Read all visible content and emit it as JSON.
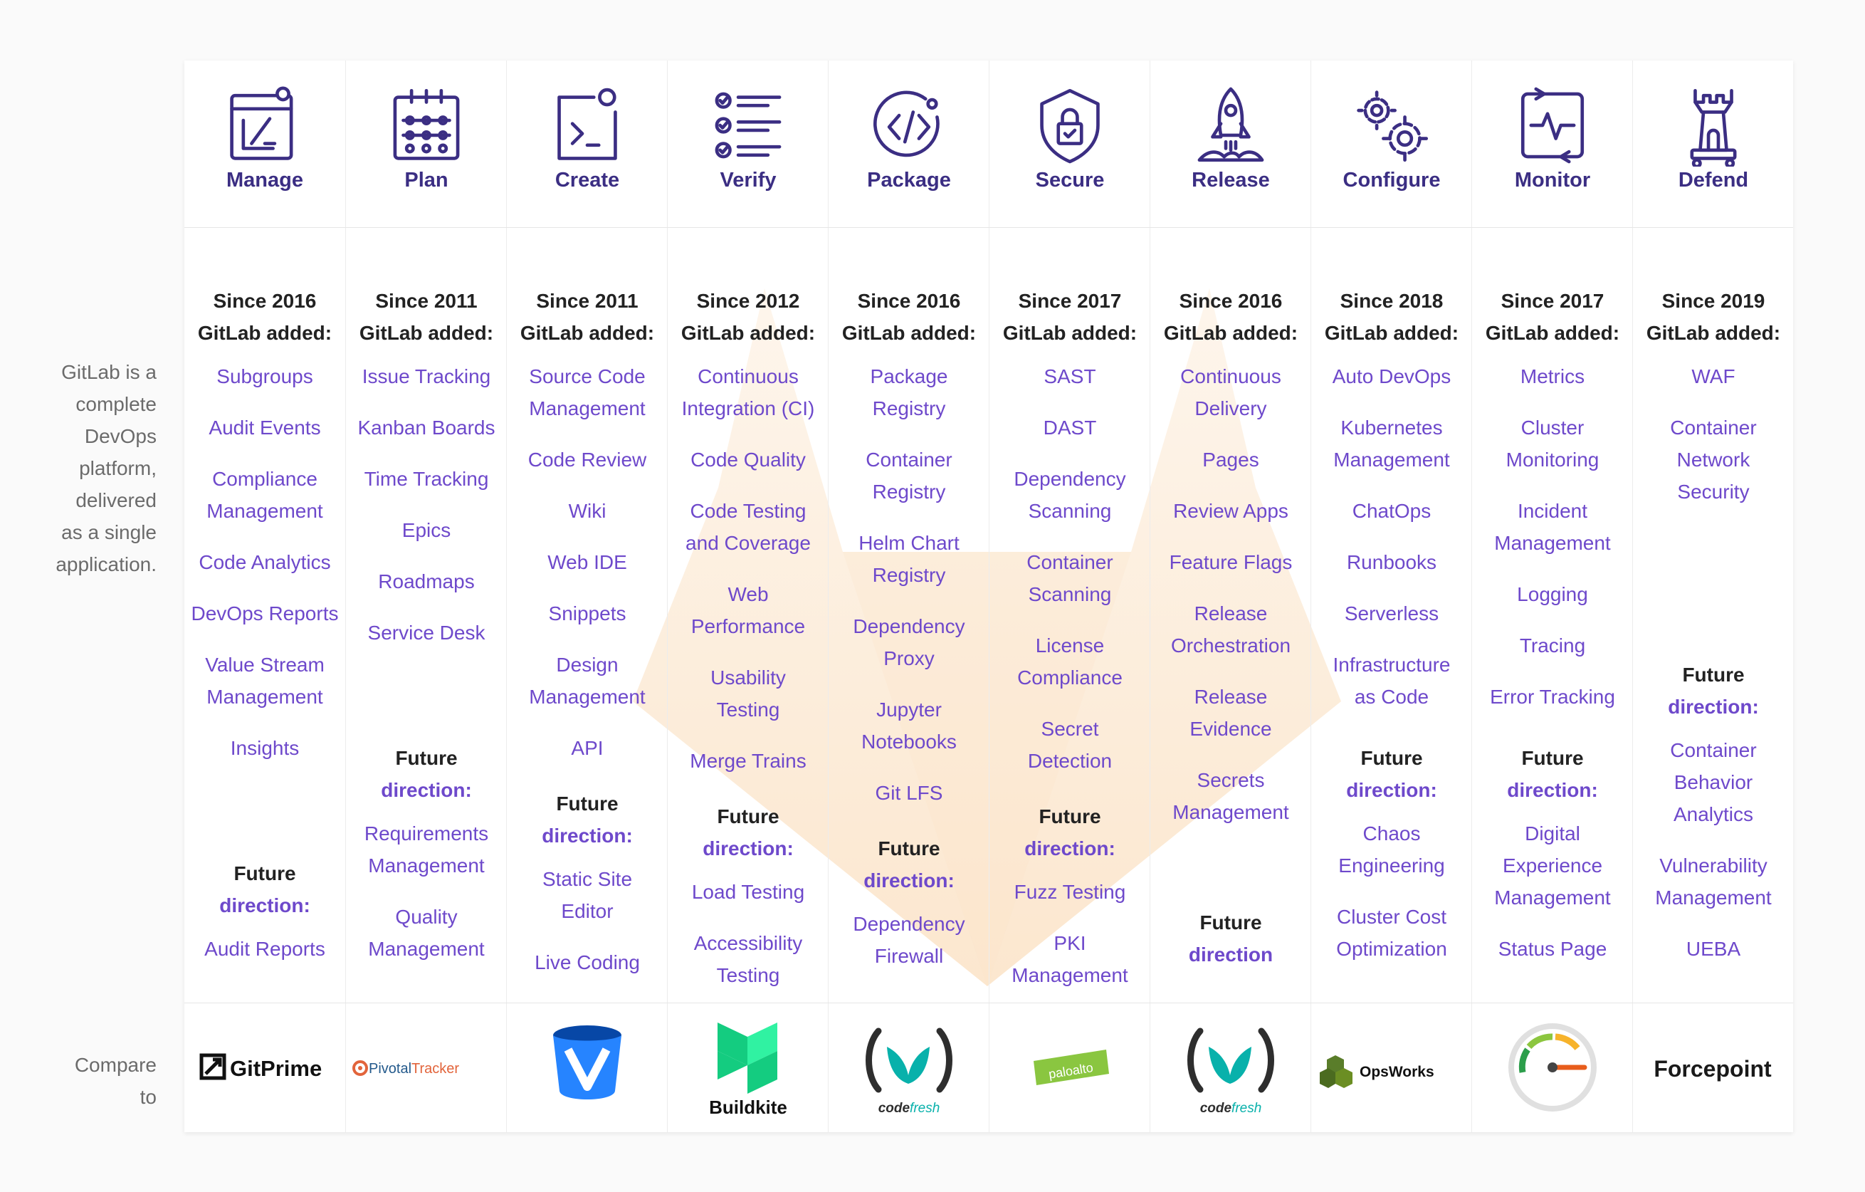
{
  "sidebar": {
    "description": [
      "GitLab is a",
      "complete",
      "DevOps",
      "platform,",
      "delivered",
      "as a single",
      "application."
    ],
    "compare": [
      "Compare",
      "to"
    ]
  },
  "colors": {
    "stage_name": "#3b2e83",
    "feature_link": "#6e49cb",
    "tanuki_tint": "#fbe4c9"
  },
  "stages": [
    {
      "name": "Manage",
      "icon": "manage-icon",
      "since": [
        "Since 2016",
        "GitLab added:"
      ],
      "features": [
        [
          "Subgroups"
        ],
        [
          "Audit Events"
        ],
        [
          "Compliance",
          "Management"
        ],
        [
          "Code Analytics"
        ],
        [
          "DevOps Reports"
        ],
        [
          "Value Stream",
          "Management"
        ],
        [
          "Insights"
        ]
      ],
      "future_label": [
        "Future",
        "direction:"
      ],
      "future": [
        [
          "Audit Reports"
        ]
      ],
      "compare": "GitPrime"
    },
    {
      "name": "Plan",
      "icon": "plan-icon",
      "since": [
        "Since 2011",
        "GitLab added:"
      ],
      "features": [
        [
          "Issue Tracking"
        ],
        [
          "Kanban Boards"
        ],
        [
          "Time Tracking"
        ],
        [
          "Epics"
        ],
        [
          "Roadmaps"
        ],
        [
          "Service Desk"
        ]
      ],
      "future_label": [
        "Future",
        "direction:"
      ],
      "future": [
        [
          "Requirements",
          "Management"
        ],
        [
          "Quality",
          "Management"
        ]
      ],
      "compare": "PivotalTracker"
    },
    {
      "name": "Create",
      "icon": "create-icon",
      "since": [
        "Since 2011",
        "GitLab added:"
      ],
      "features": [
        [
          "Source Code",
          "Management"
        ],
        [
          "Code Review"
        ],
        [
          "Wiki"
        ],
        [
          "Web IDE"
        ],
        [
          "Snippets"
        ],
        [
          "Design",
          "Management"
        ],
        [
          "API"
        ]
      ],
      "future_label": [
        "Future",
        "direction:"
      ],
      "future": [
        [
          "Static Site",
          "Editor"
        ],
        [
          "Live Coding"
        ]
      ],
      "compare": "Bitbucket"
    },
    {
      "name": "Verify",
      "icon": "verify-icon",
      "since": [
        "Since 2012",
        "GitLab added:"
      ],
      "features": [
        [
          "Continuous",
          "Integration (CI)"
        ],
        [
          "Code Quality"
        ],
        [
          "Code Testing",
          "and Coverage"
        ],
        [
          "Web",
          "Performance"
        ],
        [
          "Usability",
          "Testing"
        ],
        [
          "Merge Trains"
        ]
      ],
      "future_label": [
        "Future",
        "direction:"
      ],
      "future": [
        [
          "Load Testing"
        ],
        [
          "Accessibility",
          "Testing"
        ]
      ],
      "compare": "Buildkite"
    },
    {
      "name": "Package",
      "icon": "package-icon",
      "since": [
        "Since 2016",
        "GitLab added:"
      ],
      "features": [
        [
          "Package",
          "Registry"
        ],
        [
          "Container",
          "Registry"
        ],
        [
          "Helm Chart",
          "Registry"
        ],
        [
          "Dependency",
          "Proxy"
        ],
        [
          "Jupyter",
          "Notebooks"
        ],
        [
          "Git LFS"
        ]
      ],
      "future_label": [
        "Future",
        "direction:"
      ],
      "future": [
        [
          "Dependency",
          "Firewall"
        ]
      ],
      "compare": "codefresh"
    },
    {
      "name": "Secure",
      "icon": "secure-icon",
      "since": [
        "Since 2017",
        "GitLab added:"
      ],
      "features": [
        [
          "SAST"
        ],
        [
          "DAST"
        ],
        [
          "Dependency",
          "Scanning"
        ],
        [
          "Container",
          "Scanning"
        ],
        [
          "License",
          "Compliance"
        ],
        [
          "Secret",
          "Detection"
        ]
      ],
      "future_label": [
        "Future",
        "direction:"
      ],
      "future": [
        [
          "Fuzz Testing"
        ],
        [
          "PKI",
          "Management"
        ]
      ],
      "compare": "paloalto"
    },
    {
      "name": "Release",
      "icon": "release-icon",
      "since": [
        "Since 2016",
        "GitLab added:"
      ],
      "features": [
        [
          "Continuous",
          "Delivery"
        ],
        [
          "Pages"
        ],
        [
          "Review Apps"
        ],
        [
          "Feature Flags"
        ],
        [
          "Release",
          "Orchestration"
        ],
        [
          "Release",
          "Evidence"
        ],
        [
          "Secrets",
          "Management"
        ]
      ],
      "future_label": [
        "Future",
        "direction"
      ],
      "future": [],
      "compare": "codefresh"
    },
    {
      "name": "Configure",
      "icon": "configure-icon",
      "since": [
        "Since 2018",
        "GitLab added:"
      ],
      "features": [
        [
          "Auto DevOps"
        ],
        [
          "Kubernetes",
          "Management"
        ],
        [
          "ChatOps"
        ],
        [
          "Runbooks"
        ],
        [
          "Serverless"
        ],
        [
          "Infrastructure",
          "as Code"
        ]
      ],
      "future_label": [
        "Future",
        "direction:"
      ],
      "future": [
        [
          "Chaos",
          "Engineering"
        ],
        [
          "Cluster Cost",
          "Optimization"
        ]
      ],
      "compare": "OpsWorks"
    },
    {
      "name": "Monitor",
      "icon": "monitor-icon",
      "since": [
        "Since 2017",
        "GitLab added:"
      ],
      "features": [
        [
          "Metrics"
        ],
        [
          "Cluster",
          "Monitoring"
        ],
        [
          "Incident",
          "Management"
        ],
        [
          "Logging"
        ],
        [
          "Tracing"
        ],
        [
          "Error Tracking"
        ]
      ],
      "future_label": [
        "Future",
        "direction:"
      ],
      "future": [
        [
          "Digital",
          "Experience",
          "Management"
        ],
        [
          "Status Page"
        ]
      ],
      "compare": "speedometer"
    },
    {
      "name": "Defend",
      "icon": "defend-icon",
      "since": [
        "Since 2019",
        "GitLab added:"
      ],
      "features": [
        [
          "WAF"
        ],
        [
          "Container",
          "Network",
          "Security"
        ]
      ],
      "future_label": [
        "Future",
        "direction:"
      ],
      "future": [
        [
          "Container",
          "Behavior",
          "Analytics"
        ],
        [
          "Vulnerability",
          "Management"
        ],
        [
          "UEBA"
        ]
      ],
      "compare": "Forcepoint"
    }
  ]
}
